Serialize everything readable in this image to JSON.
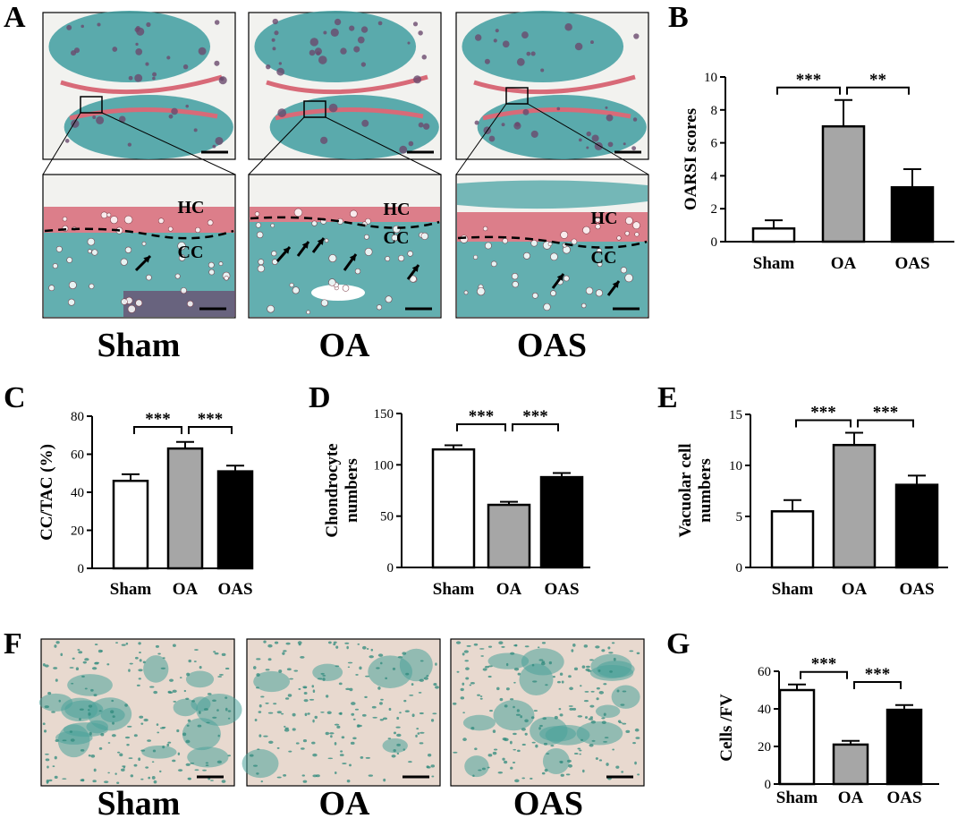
{
  "panel_letters": {
    "a": "A",
    "b": "B",
    "c": "C",
    "d": "D",
    "e": "E",
    "f": "F",
    "g": "G"
  },
  "histology": {
    "groups": [
      "Sham",
      "OA",
      "OAS"
    ],
    "zone_labels": {
      "hc": "HC",
      "cc": "CC"
    },
    "stain_colors": {
      "bone": "#3f9ea0",
      "cartilage": "#d86a78",
      "marrow": "#6a4a6e",
      "background": "#f2f2ef"
    }
  },
  "staining": {
    "groups": [
      "Sham",
      "OA",
      "OAS"
    ],
    "colors": {
      "background": "#e8d9cf",
      "cell": "#2f8a7c",
      "cluster": "#4aa39a"
    }
  },
  "chart_data": [
    {
      "id": "B",
      "type": "bar",
      "categories": [
        "Sham",
        "OA",
        "OAS"
      ],
      "values": [
        0.8,
        7.0,
        3.3
      ],
      "errors": [
        0.5,
        1.6,
        1.1
      ],
      "ylabel": "OARSI scores",
      "ylim": [
        0,
        10
      ],
      "yticks": [
        0,
        2,
        4,
        6,
        8,
        10
      ],
      "bar_colors": [
        "#ffffff",
        "#a6a6a6",
        "#000000"
      ],
      "significance": [
        {
          "from": 0,
          "to": 1,
          "label": "***"
        },
        {
          "from": 1,
          "to": 2,
          "label": "**"
        }
      ]
    },
    {
      "id": "C",
      "type": "bar",
      "categories": [
        "Sham",
        "OA",
        "OAS"
      ],
      "values": [
        46,
        63,
        51
      ],
      "errors": [
        3.5,
        3.5,
        3.0
      ],
      "ylabel": "CC/TAC (%)",
      "ylim": [
        0,
        80
      ],
      "yticks": [
        0,
        20,
        40,
        60,
        80
      ],
      "bar_colors": [
        "#ffffff",
        "#a6a6a6",
        "#000000"
      ],
      "significance": [
        {
          "from": 0,
          "to": 1,
          "label": "***"
        },
        {
          "from": 1,
          "to": 2,
          "label": "***"
        }
      ]
    },
    {
      "id": "D",
      "type": "bar",
      "categories": [
        "Sham",
        "OA",
        "OAS"
      ],
      "values": [
        115,
        61,
        88
      ],
      "errors": [
        4,
        3,
        4
      ],
      "ylabel": "Chondrocyte\nnumbers",
      "ylim": [
        0,
        150
      ],
      "yticks": [
        0,
        50,
        100,
        150
      ],
      "bar_colors": [
        "#ffffff",
        "#a6a6a6",
        "#000000"
      ],
      "significance": [
        {
          "from": 0,
          "to": 1,
          "label": "***"
        },
        {
          "from": 1,
          "to": 2,
          "label": "***"
        }
      ]
    },
    {
      "id": "E",
      "type": "bar",
      "categories": [
        "Sham",
        "OA",
        "OAS"
      ],
      "values": [
        5.5,
        12.0,
        8.1
      ],
      "errors": [
        1.1,
        1.2,
        0.9
      ],
      "ylabel": "Vacuolar cell\nnumbers",
      "ylim": [
        0,
        15
      ],
      "yticks": [
        0,
        5,
        10,
        15
      ],
      "bar_colors": [
        "#ffffff",
        "#a6a6a6",
        "#000000"
      ],
      "significance": [
        {
          "from": 0,
          "to": 1,
          "label": "***"
        },
        {
          "from": 1,
          "to": 2,
          "label": "***"
        }
      ]
    },
    {
      "id": "G",
      "type": "bar",
      "categories": [
        "Sham",
        "OA",
        "OAS"
      ],
      "values": [
        50,
        21,
        39.5
      ],
      "errors": [
        3,
        2,
        2.5
      ],
      "ylabel": "Cells /FV",
      "ylim": [
        0,
        60
      ],
      "yticks": [
        0,
        20,
        40,
        60
      ],
      "bar_colors": [
        "#ffffff",
        "#a6a6a6",
        "#000000"
      ],
      "significance": [
        {
          "from": 0,
          "to": 1,
          "label": "***"
        },
        {
          "from": 1,
          "to": 2,
          "label": "***"
        }
      ]
    }
  ]
}
